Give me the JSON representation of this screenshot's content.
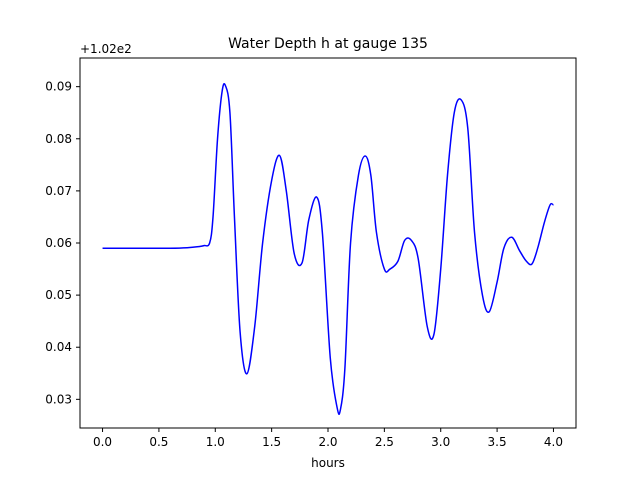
{
  "chart_data": {
    "type": "line",
    "title": "Water Depth h at gauge 135",
    "xlabel": "hours",
    "ylabel": "",
    "y_offset_label": "+1.02e2",
    "xlim": [
      -0.2,
      4.2
    ],
    "ylim": [
      0.0245,
      0.0955
    ],
    "xticks": [
      0.0,
      0.5,
      1.0,
      1.5,
      2.0,
      2.5,
      3.0,
      3.5,
      4.0
    ],
    "xtick_labels": [
      "0.0",
      "0.5",
      "1.0",
      "1.5",
      "2.0",
      "2.5",
      "3.0",
      "3.5",
      "4.0"
    ],
    "yticks": [
      0.03,
      0.04,
      0.05,
      0.06,
      0.07,
      0.08,
      0.09
    ],
    "ytick_labels": [
      "0.03",
      "0.04",
      "0.05",
      "0.06",
      "0.07",
      "0.08",
      "0.09"
    ],
    "grid": false,
    "line_color": "#0000ff",
    "series": [
      {
        "x": [
          0.0,
          0.2,
          0.4,
          0.6,
          0.75,
          0.85,
          0.9,
          0.95,
          0.98,
          1.02,
          1.06,
          1.09,
          1.13,
          1.17,
          1.22,
          1.28,
          1.35,
          1.42,
          1.5,
          1.57,
          1.63,
          1.7,
          1.77,
          1.83,
          1.9,
          1.95,
          2.02,
          2.08,
          2.11,
          2.15,
          2.2,
          2.27,
          2.33,
          2.38,
          2.43,
          2.5,
          2.55,
          2.62,
          2.68,
          2.74,
          2.8,
          2.88,
          2.94,
          3.0,
          3.06,
          3.12,
          3.18,
          3.24,
          3.3,
          3.37,
          3.43,
          3.5,
          3.56,
          3.63,
          3.7,
          3.76,
          3.81,
          3.86,
          3.92,
          3.97,
          4.0
        ],
        "y": [
          0.059,
          0.059,
          0.059,
          0.059,
          0.0591,
          0.0593,
          0.0595,
          0.06,
          0.065,
          0.08,
          0.089,
          0.0902,
          0.085,
          0.065,
          0.043,
          0.0349,
          0.044,
          0.06,
          0.072,
          0.0768,
          0.07,
          0.058,
          0.0562,
          0.0645,
          0.0688,
          0.062,
          0.038,
          0.0285,
          0.028,
          0.036,
          0.06,
          0.073,
          0.0767,
          0.073,
          0.062,
          0.055,
          0.055,
          0.0565,
          0.0605,
          0.0605,
          0.057,
          0.044,
          0.0425,
          0.055,
          0.073,
          0.085,
          0.0875,
          0.082,
          0.062,
          0.05,
          0.0468,
          0.0525,
          0.059,
          0.0611,
          0.0585,
          0.0565,
          0.056,
          0.059,
          0.064,
          0.0673,
          0.0673
        ]
      }
    ]
  }
}
